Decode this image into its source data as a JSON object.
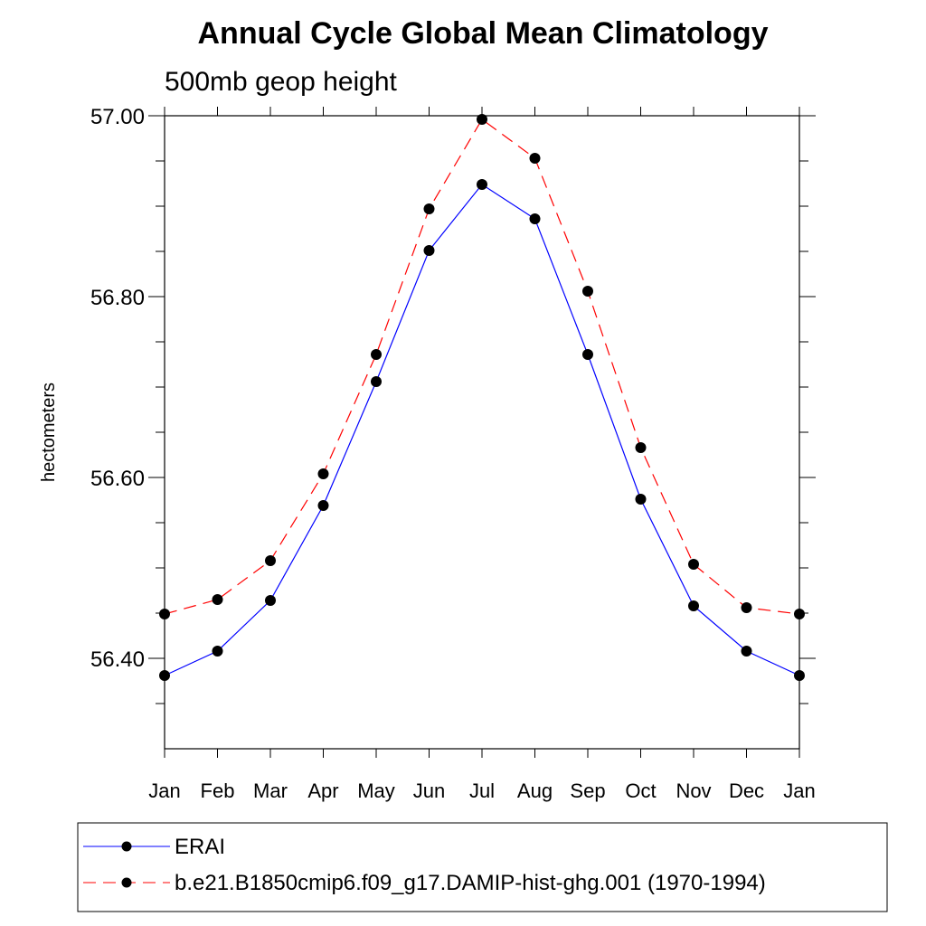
{
  "chart_data": {
    "type": "line",
    "title": "Annual Cycle Global Mean Climatology",
    "subtitle": "500mb geop height",
    "xlabel": "",
    "ylabel": "hectometers",
    "categories": [
      "Jan",
      "Feb",
      "Mar",
      "Apr",
      "May",
      "Jun",
      "Jul",
      "Aug",
      "Sep",
      "Oct",
      "Nov",
      "Dec",
      "Jan"
    ],
    "ylim": [
      56.3,
      57.0
    ],
    "yticks": [
      56.4,
      56.6,
      56.8,
      57.0
    ],
    "ytick_labels": [
      "56.40",
      "56.60",
      "56.80",
      "57.00"
    ],
    "yminor_step": 0.05,
    "grid": false,
    "legend_position": "bottom",
    "series": [
      {
        "name": "ERAI",
        "color": "#0000ff",
        "line_style": "solid",
        "marker": "filled-circle",
        "values": [
          56.381,
          56.408,
          56.464,
          56.569,
          56.706,
          56.851,
          56.924,
          56.886,
          56.736,
          56.576,
          56.458,
          56.408,
          56.381
        ]
      },
      {
        "name": "b.e21.B1850cmip6.f09_g17.DAMIP-hist-ghg.001 (1970-1994)",
        "color": "#ff0000",
        "line_style": "dashed",
        "marker": "filled-circle",
        "values": [
          56.449,
          56.465,
          56.508,
          56.604,
          56.736,
          56.897,
          56.996,
          56.953,
          56.806,
          56.633,
          56.504,
          56.456,
          56.449
        ]
      }
    ]
  }
}
